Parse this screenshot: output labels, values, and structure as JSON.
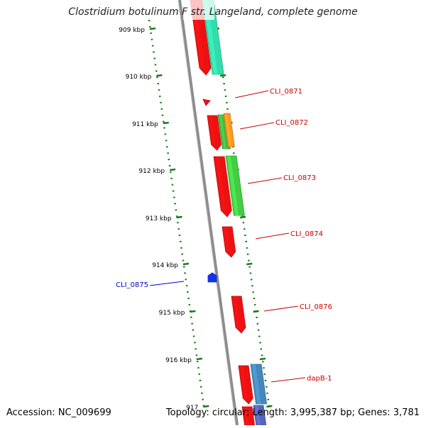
{
  "title": "Clostridium botulinum F str. Langeland, complete genome",
  "footer": {
    "accession": "Accession: NC_009699",
    "summary": "Topology: circular; Length: 3,995,387 bp; Genes: 3,781"
  },
  "colors": {
    "backbone": "#8c8c8c",
    "ruler": "#1a7a1a",
    "red_label": "#cc0000",
    "blue_label": "#0000cc"
  },
  "ticks": [
    {
      "label": "909 kbp"
    },
    {
      "label": "910 kbp"
    },
    {
      "label": "911 kbp"
    },
    {
      "label": "912 kbp"
    },
    {
      "label": "913 kbp"
    },
    {
      "label": "914 kbp"
    },
    {
      "label": "915 kbp"
    },
    {
      "label": "916 kbp"
    },
    {
      "label": "917"
    }
  ],
  "features": [
    {
      "id": "f-top-red",
      "color": "#ee1111"
    },
    {
      "id": "f-top-cyan",
      "color": "#33ddaa"
    },
    {
      "id": "f-0871",
      "color": "#ee1111"
    },
    {
      "id": "f-0872-red",
      "color": "#ee1111"
    },
    {
      "id": "f-0872-green",
      "color": "#44bb44"
    },
    {
      "id": "f-0872-orange",
      "color": "#ff9922"
    },
    {
      "id": "f-0873-red",
      "color": "#ee1111"
    },
    {
      "id": "f-0873-green",
      "color": "#44cc44"
    },
    {
      "id": "f-0874",
      "color": "#ee1111"
    },
    {
      "id": "f-0875",
      "color": "#1133ee"
    },
    {
      "id": "f-0876",
      "color": "#ee1111"
    },
    {
      "id": "f-dapb-red",
      "color": "#ee1111"
    },
    {
      "id": "f-dapb-blue",
      "color": "#4488bb"
    }
  ],
  "labels": [
    {
      "text": "CLI_0871",
      "color": "#cc0000"
    },
    {
      "text": "CLI_0872",
      "color": "#cc0000"
    },
    {
      "text": "CLI_0873",
      "color": "#cc0000"
    },
    {
      "text": "CLI_0874",
      "color": "#cc0000"
    },
    {
      "text": "CLI_0875",
      "color": "#0000cc"
    },
    {
      "text": "CLI_0876",
      "color": "#cc0000"
    },
    {
      "text": "dapB-1",
      "color": "#cc0000"
    }
  ]
}
